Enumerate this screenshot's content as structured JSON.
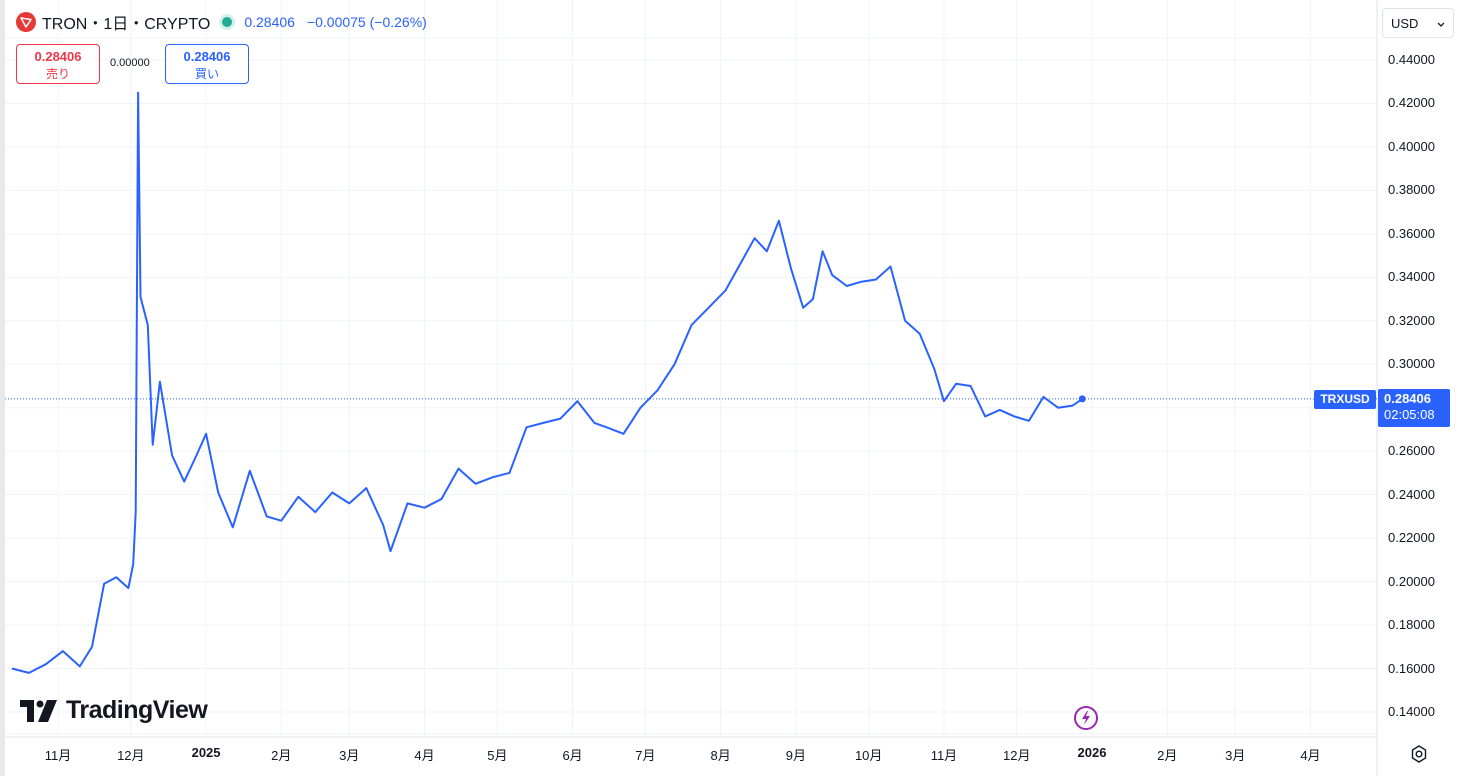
{
  "header": {
    "symbol_title": "TRON・1日・CRYPTO",
    "last_price": "0.28406",
    "change": "−0.00075 (−0.26%)"
  },
  "trade": {
    "sell_value": "0.28406",
    "sell_label": "売り",
    "spread": "0.00000",
    "buy_value": "0.28406",
    "buy_label": "買い"
  },
  "currency_select": {
    "value": "USD"
  },
  "price_tag": {
    "symbol": "TRXUSD",
    "price": "0.28406",
    "countdown": "02:05:08"
  },
  "branding": {
    "name": "TradingView"
  },
  "colors": {
    "line": "#2962ff",
    "grid": "#f0f3fa",
    "sell": "#f23645",
    "buy": "#2962ff",
    "flash": "#9c27b0"
  },
  "chart_data": {
    "type": "line",
    "title": "TRON・1日・CRYPTO",
    "series": [
      {
        "name": "TRXUSD",
        "x": [
          "2024-10-13",
          "2024-10-20",
          "2024-10-27",
          "2024-11-03",
          "2024-11-10",
          "2024-11-15",
          "2024-11-20",
          "2024-11-25",
          "2024-11-30",
          "2024-12-02",
          "2024-12-03",
          "2024-12-04",
          "2024-12-05",
          "2024-12-08",
          "2024-12-10",
          "2024-12-13",
          "2024-12-18",
          "2024-12-23",
          "2024-12-28",
          "2025-01-01",
          "2025-01-06",
          "2025-01-12",
          "2025-01-19",
          "2025-01-26",
          "2025-02-01",
          "2025-02-08",
          "2025-02-15",
          "2025-02-22",
          "2025-03-01",
          "2025-03-08",
          "2025-03-15",
          "2025-03-18",
          "2025-03-25",
          "2025-04-01",
          "2025-04-08",
          "2025-04-15",
          "2025-04-22",
          "2025-04-29",
          "2025-05-06",
          "2025-05-13",
          "2025-05-20",
          "2025-05-27",
          "2025-06-03",
          "2025-06-10",
          "2025-06-15",
          "2025-06-22",
          "2025-06-29",
          "2025-07-06",
          "2025-07-13",
          "2025-07-20",
          "2025-07-27",
          "2025-08-03",
          "2025-08-10",
          "2025-08-15",
          "2025-08-20",
          "2025-08-25",
          "2025-08-30",
          "2025-09-04",
          "2025-09-08",
          "2025-09-12",
          "2025-09-16",
          "2025-09-22",
          "2025-09-28",
          "2025-10-04",
          "2025-10-10",
          "2025-10-16",
          "2025-10-22",
          "2025-10-28",
          "2025-11-01",
          "2025-11-06",
          "2025-11-12",
          "2025-11-18",
          "2025-11-24",
          "2025-11-30",
          "2025-12-06",
          "2025-12-12",
          "2025-12-18",
          "2025-12-24",
          "2025-12-28"
        ],
        "values": [
          0.16,
          0.158,
          0.162,
          0.168,
          0.161,
          0.17,
          0.199,
          0.202,
          0.197,
          0.208,
          0.232,
          0.425,
          0.331,
          0.318,
          0.263,
          0.292,
          0.258,
          0.246,
          0.258,
          0.268,
          0.241,
          0.225,
          0.251,
          0.23,
          0.228,
          0.239,
          0.232,
          0.241,
          0.236,
          0.243,
          0.226,
          0.214,
          0.236,
          0.234,
          0.238,
          0.252,
          0.245,
          0.248,
          0.25,
          0.271,
          0.273,
          0.275,
          0.283,
          0.273,
          0.271,
          0.268,
          0.28,
          0.288,
          0.3,
          0.318,
          0.326,
          0.334,
          0.348,
          0.358,
          0.352,
          0.366,
          0.344,
          0.326,
          0.33,
          0.352,
          0.341,
          0.336,
          0.338,
          0.339,
          0.345,
          0.32,
          0.314,
          0.298,
          0.283,
          0.291,
          0.29,
          0.276,
          0.279,
          0.276,
          0.274,
          0.285,
          0.28,
          0.281,
          0.28406
        ]
      }
    ],
    "xlabel": "",
    "ylabel": "",
    "ylim": [
      0.13,
      0.45
    ],
    "yticks": [
      "0.44000",
      "0.42000",
      "0.40000",
      "0.38000",
      "0.36000",
      "0.34000",
      "0.32000",
      "0.30000",
      "0.28000",
      "0.26000",
      "0.24000",
      "0.22000",
      "0.20000",
      "0.18000",
      "0.16000",
      "0.14000"
    ],
    "xticks": [
      {
        "label": "11月",
        "date": "2024-11-01",
        "bold": false
      },
      {
        "label": "12月",
        "date": "2024-12-01",
        "bold": false
      },
      {
        "label": "2025",
        "date": "2025-01-01",
        "bold": true
      },
      {
        "label": "2月",
        "date": "2025-02-01",
        "bold": false
      },
      {
        "label": "3月",
        "date": "2025-03-01",
        "bold": false
      },
      {
        "label": "4月",
        "date": "2025-04-01",
        "bold": false
      },
      {
        "label": "5月",
        "date": "2025-05-01",
        "bold": false
      },
      {
        "label": "6月",
        "date": "2025-06-01",
        "bold": false
      },
      {
        "label": "7月",
        "date": "2025-07-01",
        "bold": false
      },
      {
        "label": "8月",
        "date": "2025-08-01",
        "bold": false
      },
      {
        "label": "9月",
        "date": "2025-09-01",
        "bold": false
      },
      {
        "label": "10月",
        "date": "2025-10-01",
        "bold": false
      },
      {
        "label": "11月",
        "date": "2025-11-01",
        "bold": false
      },
      {
        "label": "12月",
        "date": "2025-12-01",
        "bold": false
      },
      {
        "label": "2026",
        "date": "2026-01-01",
        "bold": true
      },
      {
        "label": "2月",
        "date": "2026-02-01",
        "bold": false
      },
      {
        "label": "3月",
        "date": "2026-03-01",
        "bold": false
      },
      {
        "label": "4月",
        "date": "2026-04-01",
        "bold": false
      }
    ],
    "current_price": 0.28406,
    "grid": true
  }
}
